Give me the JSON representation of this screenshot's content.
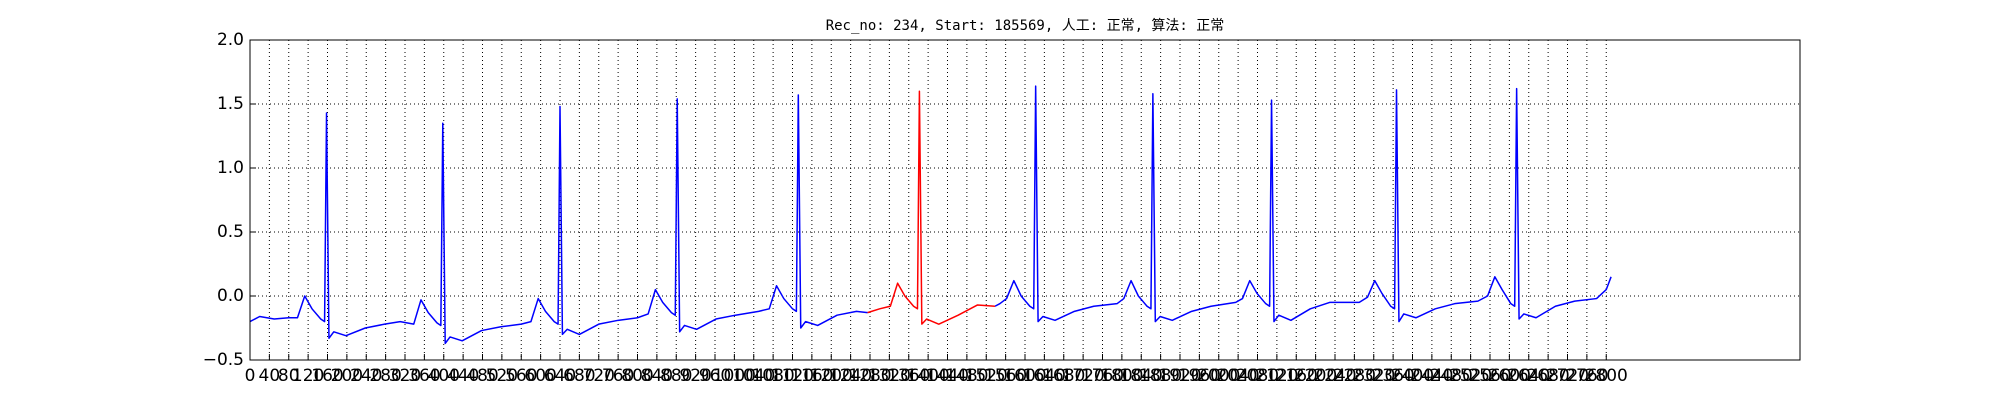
{
  "chart_data": {
    "type": "line",
    "title": "Rec_no: 234, Start: 185569, 人工: 正常, 算法: 正常",
    "x": [
      0,
      20,
      50,
      80,
      98,
      113,
      128,
      146,
      154,
      158,
      163,
      173,
      198,
      238,
      278,
      310,
      338,
      353,
      368,
      386,
      394,
      398,
      403,
      413,
      438,
      478,
      518,
      560,
      580,
      595,
      610,
      628,
      636,
      640,
      645,
      655,
      680,
      720,
      760,
      800,
      822,
      837,
      852,
      870,
      878,
      882,
      887,
      897,
      922,
      962,
      1002,
      1050,
      1072,
      1087,
      1102,
      1120,
      1128,
      1132,
      1137,
      1147,
      1172,
      1212,
      1252,
      1275,
      1300,
      1322,
      1337,
      1352,
      1370,
      1378,
      1382,
      1387,
      1397,
      1422,
      1462,
      1502,
      1538,
      1548,
      1562,
      1577,
      1592,
      1610,
      1618,
      1622,
      1627,
      1637,
      1662,
      1702,
      1742,
      1790,
      1804,
      1819,
      1834,
      1852,
      1860,
      1864,
      1869,
      1879,
      1904,
      1944,
      1984,
      2035,
      2049,
      2064,
      2079,
      2097,
      2105,
      2109,
      2114,
      2124,
      2149,
      2189,
      2229,
      2290,
      2307,
      2322,
      2337,
      2355,
      2363,
      2367,
      2372,
      2382,
      2407,
      2447,
      2487,
      2535,
      2555,
      2570,
      2585,
      2603,
      2611,
      2615,
      2620,
      2630,
      2655,
      2695,
      2735,
      2780,
      2800,
      2810
    ],
    "series": [
      {
        "color": "#0000ff",
        "values": [
          -0.2,
          -0.16,
          -0.18,
          -0.17,
          -0.17,
          0.0,
          -0.1,
          -0.18,
          -0.2,
          1.43,
          -0.33,
          -0.28,
          -0.31,
          -0.25,
          -0.22,
          -0.2,
          -0.22,
          -0.03,
          -0.13,
          -0.21,
          -0.23,
          1.35,
          -0.37,
          -0.32,
          -0.35,
          -0.27,
          -0.24,
          -0.22,
          -0.2,
          -0.02,
          -0.12,
          -0.2,
          -0.22,
          1.48,
          -0.3,
          -0.26,
          -0.3,
          -0.22,
          -0.19,
          -0.17,
          -0.14,
          0.05,
          -0.05,
          -0.13,
          -0.15,
          1.54,
          -0.28,
          -0.23,
          -0.26,
          -0.18,
          -0.15,
          -0.12,
          -0.1,
          0.08,
          -0.02,
          -0.1,
          -0.12,
          1.57,
          -0.25,
          -0.2,
          -0.23,
          -0.15,
          -0.12,
          -0.13,
          null,
          null,
          null,
          null,
          null,
          null,
          null,
          null,
          null,
          null,
          null,
          null,
          -0.08,
          -0.06,
          -0.02,
          0.12,
          0.0,
          -0.08,
          -0.1,
          1.64,
          -0.2,
          -0.16,
          -0.19,
          -0.12,
          -0.08,
          -0.06,
          -0.02,
          0.12,
          0.0,
          -0.08,
          -0.1,
          1.58,
          -0.2,
          -0.16,
          -0.19,
          -0.12,
          -0.08,
          -0.05,
          -0.02,
          0.12,
          0.02,
          -0.06,
          -0.08,
          1.53,
          -0.2,
          -0.15,
          -0.19,
          -0.1,
          -0.05,
          -0.05,
          -0.01,
          0.12,
          0.02,
          -0.08,
          -0.1,
          1.61,
          -0.2,
          -0.14,
          -0.17,
          -0.1,
          -0.06,
          -0.04,
          0.0,
          0.15,
          0.05,
          -0.06,
          -0.08,
          1.62,
          -0.18,
          -0.14,
          -0.17,
          -0.08,
          -0.04,
          -0.02,
          0.05,
          0.15
        ]
      },
      {
        "color": "#ff0000",
        "values": [
          null,
          null,
          null,
          null,
          null,
          null,
          null,
          null,
          null,
          null,
          null,
          null,
          null,
          null,
          null,
          null,
          null,
          null,
          null,
          null,
          null,
          null,
          null,
          null,
          null,
          null,
          null,
          null,
          null,
          null,
          null,
          null,
          null,
          null,
          null,
          null,
          null,
          null,
          null,
          null,
          null,
          null,
          null,
          null,
          null,
          null,
          null,
          null,
          null,
          null,
          null,
          null,
          null,
          null,
          null,
          null,
          null,
          null,
          null,
          null,
          null,
          null,
          null,
          -0.13,
          -0.1,
          -0.08,
          0.1,
          0.0,
          -0.08,
          -0.1,
          1.6,
          -0.22,
          -0.18,
          -0.22,
          -0.15,
          -0.07,
          -0.08,
          null,
          null,
          null,
          null,
          null,
          null,
          null,
          null,
          null,
          null,
          null,
          null,
          null,
          null,
          null,
          null,
          null,
          null,
          null,
          null,
          null,
          null,
          null,
          null,
          null,
          null,
          null,
          null,
          null,
          null,
          null,
          null,
          null,
          null,
          null,
          null,
          null,
          null,
          null,
          null,
          null,
          null,
          null,
          null,
          null,
          null,
          null,
          null,
          null,
          null,
          null,
          null,
          null,
          null,
          null,
          null,
          null,
          null,
          null,
          null,
          null,
          null,
          null
        ]
      }
    ],
    "xlim": [
      0,
      3200
    ],
    "xticks": [
      0,
      40,
      80,
      120,
      160,
      200,
      240,
      280,
      320,
      360,
      400,
      440,
      480,
      520,
      560,
      600,
      640,
      680,
      720,
      760,
      800,
      840,
      880,
      920,
      960,
      1000,
      1040,
      1080,
      1120,
      1160,
      1200,
      1240,
      1280,
      1320,
      1360,
      1400,
      1440,
      1480,
      1520,
      1560,
      1600,
      1640,
      1680,
      1720,
      1760,
      1800,
      1840,
      1880,
      1920,
      1960,
      2000,
      2040,
      2080,
      2120,
      2160,
      2200,
      2240,
      2280,
      2320,
      2360,
      2400,
      2440,
      2480,
      2520,
      2560,
      2600,
      2640,
      2680,
      2720,
      2760,
      2800
    ],
    "ylim": [
      -0.5,
      2.0
    ],
    "yticks": [
      {
        "value": -0.5,
        "label": "−0.5"
      },
      {
        "value": 0,
        "label": "0.0"
      },
      {
        "value": 0.5,
        "label": "0.5"
      },
      {
        "value": 1,
        "label": "1.0"
      },
      {
        "value": 1.5,
        "label": "1.5"
      },
      {
        "value": 2,
        "label": "2.0"
      }
    ],
    "grid": true
  }
}
